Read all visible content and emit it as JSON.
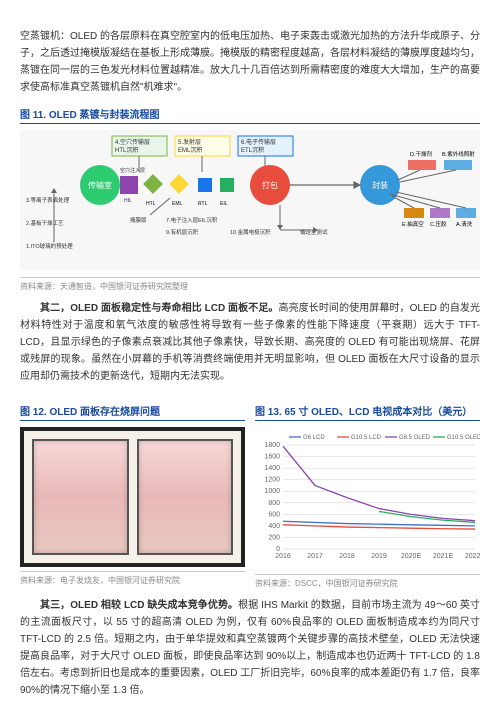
{
  "para1": "空蒸镀机：OLED 的各层原料在真空腔室内的低电压加热、电子束轰击或激光加热的方法升华成原子、分子，之后透过掩模版凝结在基板上形成薄膜。掩模版的精密程度越高，各层材料凝结的薄膜厚度越均匀，蒸镀在同一层的三色发光材料位置越精准。放大几十几百倍达到所需精密度的难度大大增加，生产的高要求使高标准真空蒸镀机自然\"机难求\"。",
  "fig11_title": "图 11. OLED 蒸镀与封装流程图",
  "flow": {
    "bg": "#f2f2f2",
    "stages": [
      {
        "label": "传输室",
        "color": "#2ecc71"
      },
      {
        "label": "打包",
        "color": "#e74c3c"
      },
      {
        "label": "封装",
        "color": "#3498db"
      }
    ],
    "pre_steps": [
      "1.ITO玻璃的预处理",
      "2.基板干燥工艺",
      "3.等离子表面处理"
    ],
    "top_steps": [
      {
        "n": "4.",
        "t": "空穴传输层\nHTL沉积",
        "c": "#7cb342"
      },
      {
        "n": "5.",
        "t": "发射层\nEML沉积",
        "c": "#fdd835"
      },
      {
        "n": "6.",
        "t": "电子传输层\nETL沉积",
        "c": "#1a73e8"
      }
    ],
    "mid_row": [
      {
        "l": "空穴注入层\nHIL",
        "c": "#8e44ad"
      },
      {
        "l": "HTL",
        "c": "#7cb342",
        "shape": "diamond"
      },
      {
        "l": "EML",
        "c": "#fdd835",
        "shape": "diamond"
      },
      {
        "l": "RTL",
        "c": "#1a73e8"
      },
      {
        "l": "EIL",
        "c": "#27ae60"
      }
    ],
    "right_steps": [
      {
        "l": "D.干燥剂",
        "c": "#ec7063"
      },
      {
        "l": "B.紫外线照射",
        "c": "#5dade2"
      }
    ],
    "bottom_right": [
      {
        "l": "E.抽真空",
        "c": "#d68910"
      },
      {
        "l": "C.压胶",
        "c": "#af7ac5"
      },
      {
        "l": "A.清洗",
        "c": "#5dade2"
      }
    ],
    "bottom_labels": [
      "掩膜版",
      "7.电子注入层EIL沉积",
      "9.有机层沉积",
      "10.金属电极沉积",
      "输送至测试"
    ]
  },
  "source11": "资料来源：天通智造，中国银河证券研究院整理",
  "para2_lead": "其二，OLED 面板稳定性与寿命相比 LCD 面板不足。",
  "para2": "高亮度长时间的使用屏幕时，OLED 的自发光材料特性对于温度和氧气浓度的敏感性将导致有一些子像素的性能下降速度（平衰期）远大于 TFT-LCD，且显示绿色的子像素点衰减比其他子像素快，导致长期、高亮度的 OLED 有可能出现烧屏、花屏或残屏的现象。虽然在小屏幕的手机等消费终端使用并无明显影响，但 OLED 面板在大尺寸设备的显示应用却仍需技术的更新迭代，短期内无法实现。",
  "fig12_title": "图 12. OLED 面板存在烧屏问题",
  "fig13_title": "图 13. 65 寸 OLED、LCD 电视成本对比（美元）",
  "chart": {
    "bg": "#ffffff",
    "series": [
      {
        "name": "G6 LCD",
        "color": "#4472c4",
        "y": [
          480,
          460,
          440,
          430,
          420,
          410,
          400
        ]
      },
      {
        "name": "G10.5 LCD",
        "color": "#e74c3c",
        "y": [
          420,
          400,
          380,
          370,
          360,
          350,
          345
        ]
      },
      {
        "name": "G8.5 OLED",
        "color": "#8e44ad",
        "y": [
          1780,
          1100,
          890,
          700,
          600,
          530,
          490
        ]
      },
      {
        "name": "G10.5 OLED",
        "color": "#27ae60",
        "y": [
          null,
          null,
          null,
          650,
          560,
          500,
          460
        ]
      }
    ],
    "x_labels": [
      "2016",
      "2017",
      "2018",
      "2019",
      "2020E",
      "2021E",
      "2022E"
    ],
    "y_ticks": [
      0,
      200,
      400,
      600,
      800,
      1000,
      1200,
      1400,
      1600,
      1800
    ],
    "y_max": 1800,
    "grid_color": "#d0d0d0",
    "axis_fontsize": 7,
    "legend_fontsize": 6
  },
  "source12": "资料来源：电子发烧友，中国银河证券研究院",
  "source13": "资料来源：DSCC，中国银河证券研究院",
  "para3_lead": "其三，OLED 相较 LCD 缺失成本竞争优势。",
  "para3": "根据 IHS Markit 的数据，目前市场主流为 49～60 英寸的主流面板尺寸，以 55 寸的超高清 OLED 为例，仅有 60%良品率的 OLED 面板制造成本约为同尺寸 TFT-LCD 的 2.5 倍。短期之内，由于单华提效和真空蒸镀两个关键步骤的高技术壁垒，OLED 无法快速提高良品率，对于大尺寸 OLED 面板，即使良品率达到 90%以上，制造成本也仍近两十 TFT-LCD 的 1.8 倍左右。考虑到折旧也是成本的重要因素，OLED 工厂折旧完毕，60%良率的成本差距仍有 1.7 倍，良率 90%的情况下缩小至 1.3 倍。"
}
